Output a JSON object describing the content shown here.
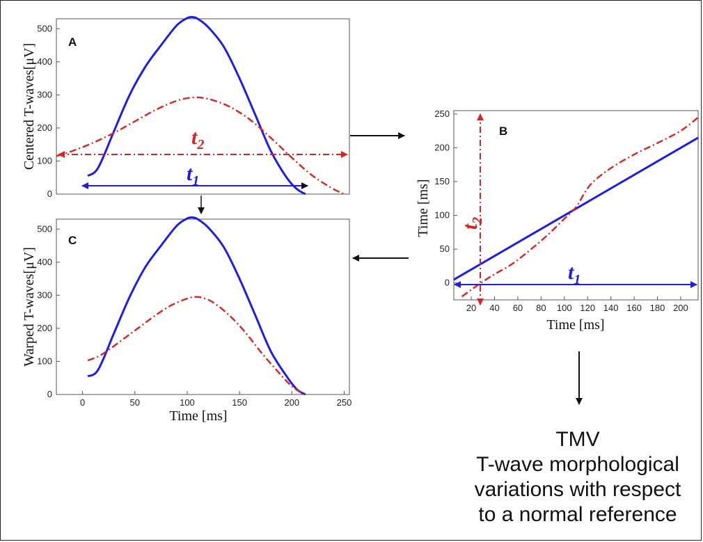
{
  "colors": {
    "blue": "#1c1cf0",
    "red": "#e0201c"
  },
  "charts": {
    "A": {
      "letter": "A",
      "ylabel": "Centered T-waves[μV]",
      "xlim": [
        -25,
        255
      ],
      "ylim": [
        0,
        530
      ],
      "yticks": [
        0,
        100,
        200,
        300,
        400,
        500
      ],
      "t1_label": "t",
      "t1_sub": "1",
      "t2_label": "t",
      "t2_sub": "2"
    },
    "B": {
      "letter": "B",
      "xlabel": "Time [ms]",
      "ylabel": "Time [ms]",
      "xlim": [
        5,
        215
      ],
      "ylim": [
        -25,
        255
      ],
      "xticks": [
        20,
        40,
        60,
        80,
        100,
        120,
        140,
        160,
        180,
        200
      ],
      "yticks": [
        0,
        50,
        100,
        150,
        200,
        250
      ],
      "t1_label": "t",
      "t1_sub": "1",
      "t2_label": "t",
      "t2_sub": "2"
    },
    "C": {
      "letter": "C",
      "xlabel": "Time [ms]",
      "ylabel": "Warped T-waves[μV]",
      "xlim": [
        -25,
        255
      ],
      "ylim": [
        0,
        530
      ],
      "xticks": [
        0,
        50,
        100,
        150,
        200,
        250
      ],
      "yticks": [
        0,
        100,
        200,
        300,
        400,
        500
      ]
    }
  },
  "chart_data": [
    {
      "type": "line",
      "panel": "A",
      "ylabel": "Centered T-waves[μV]",
      "ylim": [
        0,
        530
      ],
      "series": [
        {
          "color": "#1c1cf0",
          "style": "solid",
          "x": [
            5,
            15,
            30,
            45,
            60,
            75,
            90,
            100,
            105,
            110,
            120,
            135,
            150,
            165,
            180,
            195,
            205,
            213
          ],
          "y": [
            55,
            80,
            190,
            300,
            385,
            450,
            510,
            532,
            535,
            530,
            505,
            445,
            350,
            240,
            130,
            50,
            15,
            0
          ]
        },
        {
          "color": "#e0201c",
          "style": "dash-dot",
          "x": [
            -25,
            -10,
            10,
            30,
            50,
            70,
            90,
            105,
            120,
            140,
            160,
            180,
            200,
            220,
            240,
            250
          ],
          "y": [
            115,
            130,
            155,
            185,
            220,
            255,
            282,
            292,
            288,
            265,
            225,
            170,
            110,
            55,
            15,
            0
          ]
        }
      ]
    },
    {
      "type": "line",
      "panel": "B",
      "xlabel": "Time [ms]",
      "ylabel": "Time [ms]",
      "xlim": [
        5,
        215
      ],
      "ylim": [
        -25,
        255
      ],
      "series": [
        {
          "color": "#1c1cf0",
          "style": "solid",
          "x": [
            5,
            215
          ],
          "y": [
            5,
            215
          ]
        },
        {
          "color": "#e0201c",
          "style": "dash-dot",
          "x": [
            12,
            20,
            30,
            40,
            55,
            70,
            85,
            100,
            110,
            118,
            125,
            140,
            160,
            180,
            200,
            215
          ],
          "y": [
            -20,
            -10,
            2,
            13,
            28,
            48,
            70,
            95,
            112,
            135,
            150,
            170,
            190,
            207,
            225,
            245
          ]
        }
      ]
    },
    {
      "type": "line",
      "panel": "C",
      "xlabel": "Time [ms]",
      "ylabel": "Warped T-waves[μV]",
      "xlim": [
        -25,
        255
      ],
      "ylim": [
        0,
        530
      ],
      "series": [
        {
          "color": "#1c1cf0",
          "style": "solid",
          "x": [
            5,
            15,
            30,
            45,
            60,
            75,
            90,
            100,
            105,
            110,
            120,
            135,
            150,
            165,
            180,
            195,
            205,
            213
          ],
          "y": [
            55,
            75,
            185,
            295,
            385,
            450,
            510,
            532,
            535,
            530,
            505,
            445,
            350,
            240,
            130,
            55,
            15,
            0
          ]
        },
        {
          "color": "#e0201c",
          "style": "dash-dot",
          "x": [
            5,
            15,
            25,
            40,
            55,
            70,
            85,
            100,
            108,
            115,
            125,
            140,
            155,
            170,
            185,
            200,
            212
          ],
          "y": [
            103,
            115,
            135,
            170,
            205,
            240,
            270,
            290,
            295,
            292,
            278,
            240,
            190,
            130,
            75,
            25,
            0
          ]
        }
      ]
    }
  ],
  "caption": {
    "line1": "TMV",
    "line2": "T-wave morphological",
    "line3": "variations with respect",
    "line4": "to a normal reference"
  }
}
